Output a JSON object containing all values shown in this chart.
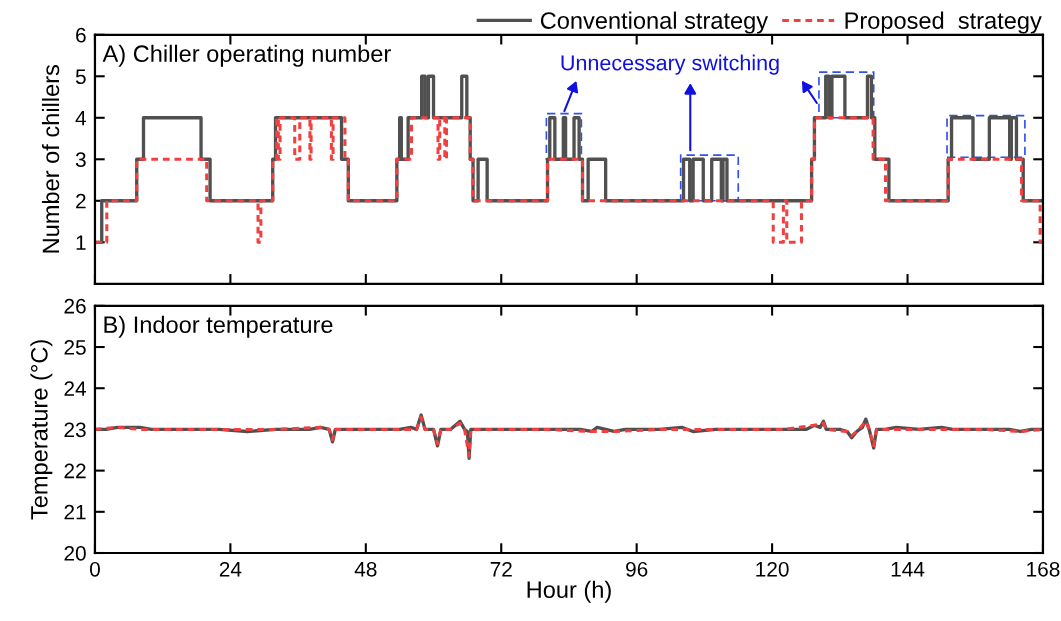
{
  "chart_data": [
    {
      "type": "step",
      "title": "A) Chiller operating number",
      "ylabel": "Number of chillers",
      "xlim": [
        0,
        168
      ],
      "xticks": [
        0,
        24,
        48,
        72,
        96,
        120,
        144,
        168
      ],
      "ylim": [
        0,
        6
      ],
      "yticks": [
        1,
        2,
        3,
        4,
        5,
        6
      ],
      "tick_labels": "y",
      "legend": "top right",
      "annotations": [
        "Unnecessary switching"
      ],
      "series": [
        {
          "name": "Conventional strategy",
          "color": "#505050",
          "line_style": "solid",
          "x": [
            0,
            1.2,
            7.4,
            8.6,
            18.8,
            20.4,
            31.5,
            32.0,
            43.7,
            44.9,
            53.5,
            54.0,
            54.3,
            55.5,
            57.9,
            58.5,
            59.1,
            60.0,
            65.0,
            65.9,
            66.5,
            67.0,
            67.9,
            69.5,
            80.2,
            80.6,
            81.5,
            83.0,
            83.4,
            84.9,
            85.8,
            86.4,
            87.4,
            90.5,
            104.3,
            105.4,
            106.0,
            107.8,
            109.3,
            111.0,
            111.3,
            112.0,
            127.0,
            127.5,
            129.5,
            130.1,
            130.6,
            132.9,
            136.9,
            137.6,
            138.2,
            140.7,
            151.2,
            151.8,
            155.6,
            158.5,
            162.1,
            162.4,
            163.3,
            164.5,
            168
          ],
          "values": [
            1,
            2,
            3,
            4,
            3,
            2,
            3,
            4,
            3,
            2,
            3,
            4,
            3,
            4,
            5,
            4,
            5,
            4,
            5,
            4,
            3,
            2,
            3,
            2,
            3,
            4,
            3,
            4,
            3,
            4,
            3,
            2,
            3,
            2,
            3,
            2,
            3,
            2,
            3,
            2,
            3,
            2,
            3,
            4,
            5,
            4,
            5,
            4,
            5,
            4,
            3,
            2,
            3,
            4,
            3,
            4,
            3,
            4,
            3,
            2,
            2
          ]
        },
        {
          "name": "Proposed  strategy",
          "color": "#f04040",
          "line_style": "dashed",
          "x": [
            0,
            2.1,
            7.4,
            19.8,
            28.9,
            29.4,
            31.5,
            32.2,
            32.5,
            32.8,
            35.4,
            36.3,
            38.1,
            38.3,
            41.9,
            42.2,
            44.3,
            44.9,
            53.5,
            56.1,
            60.8,
            61.1,
            62.0,
            62.3,
            66.5,
            67.0,
            80.2,
            86.4,
            120.2,
            122.0,
            122.6,
            125.2,
            127.0,
            127.5,
            137.9,
            140.1,
            151.2,
            164.2,
            167.5,
            168
          ],
          "values": [
            1,
            2,
            3,
            2,
            1,
            2,
            3,
            4,
            3,
            4,
            3,
            4,
            3,
            4,
            3,
            4,
            3,
            2,
            3,
            4,
            3,
            4,
            3,
            4,
            3,
            2,
            3,
            2,
            1,
            2,
            1,
            2,
            3,
            4,
            3,
            2,
            3,
            2,
            1,
            1
          ]
        }
      ]
    },
    {
      "type": "line",
      "title": "B) Indoor temperature",
      "xlabel": "Hour (h)",
      "ylabel": "Temperature (°C)",
      "xlim": [
        0,
        168
      ],
      "xticks": [
        0,
        24,
        48,
        72,
        96,
        120,
        144,
        168
      ],
      "ylim": [
        20,
        26
      ],
      "yticks": [
        20,
        21,
        22,
        23,
        24,
        25,
        26
      ],
      "series": [
        {
          "color": "#505050",
          "line_style": "solid",
          "x": [
            0,
            2,
            4,
            8,
            10,
            14,
            18,
            22,
            27,
            32,
            38,
            40,
            41.5,
            42.1,
            42.6,
            46,
            50,
            54,
            56,
            57,
            57.8,
            58.5,
            60,
            60.7,
            61.3,
            63,
            64.7,
            65.5,
            66.0,
            66.3,
            66.6,
            68,
            72,
            80,
            86,
            88,
            89,
            92,
            94,
            100,
            104,
            106,
            110,
            118,
            122,
            126,
            127.5,
            128.5,
            129.1,
            129.6,
            132,
            133.3,
            134.1,
            135,
            136,
            136.6,
            137.2,
            138.0,
            138.5,
            140,
            142,
            146,
            150,
            152,
            158,
            162,
            164,
            166,
            168
          ],
          "values": [
            23.0,
            23.0,
            23.05,
            23.05,
            23.0,
            23.0,
            23.0,
            23.0,
            22.95,
            23.0,
            23.0,
            23.05,
            23.0,
            22.7,
            23.0,
            23.0,
            23.0,
            23.0,
            23.05,
            23.0,
            23.35,
            23.0,
            23.0,
            22.6,
            23.0,
            23.0,
            23.2,
            23.0,
            22.95,
            22.3,
            23.0,
            23.0,
            23.0,
            23.0,
            23.0,
            22.95,
            23.05,
            22.95,
            23.0,
            23.0,
            23.05,
            22.95,
            23.0,
            23.0,
            23.0,
            23.0,
            23.1,
            23.05,
            23.2,
            23.0,
            23.0,
            22.95,
            22.8,
            22.95,
            23.05,
            23.25,
            23.0,
            22.55,
            23.0,
            23.0,
            23.05,
            23.0,
            23.05,
            23.0,
            23.0,
            23.0,
            22.95,
            23.0,
            23.0
          ]
        },
        {
          "color": "#f04040",
          "line_style": "dashed",
          "x": [
            0,
            4,
            8,
            14,
            22,
            32,
            40,
            41.5,
            42.1,
            42.6,
            46,
            54,
            57,
            57.8,
            58.5,
            60,
            60.7,
            61.3,
            63,
            64.7,
            65.5,
            66.3,
            66.6,
            68,
            80,
            88,
            92,
            100,
            110,
            122,
            127.5,
            129.1,
            129.6,
            133.3,
            134.1,
            135,
            136.6,
            137.2,
            138.0,
            138.5,
            142,
            150,
            158,
            164,
            168
          ],
          "values": [
            23.0,
            23.05,
            23.0,
            23.0,
            23.0,
            23.0,
            23.05,
            23.0,
            22.75,
            23.0,
            23.0,
            23.0,
            23.0,
            23.3,
            23.0,
            23.0,
            22.65,
            23.0,
            23.0,
            23.15,
            23.0,
            22.35,
            23.0,
            23.0,
            23.0,
            22.95,
            22.95,
            23.0,
            23.0,
            23.0,
            23.1,
            23.15,
            23.0,
            22.95,
            22.85,
            22.95,
            23.2,
            23.0,
            22.6,
            23.0,
            23.0,
            23.0,
            23.0,
            22.95,
            23.0
          ]
        }
      ]
    }
  ]
}
